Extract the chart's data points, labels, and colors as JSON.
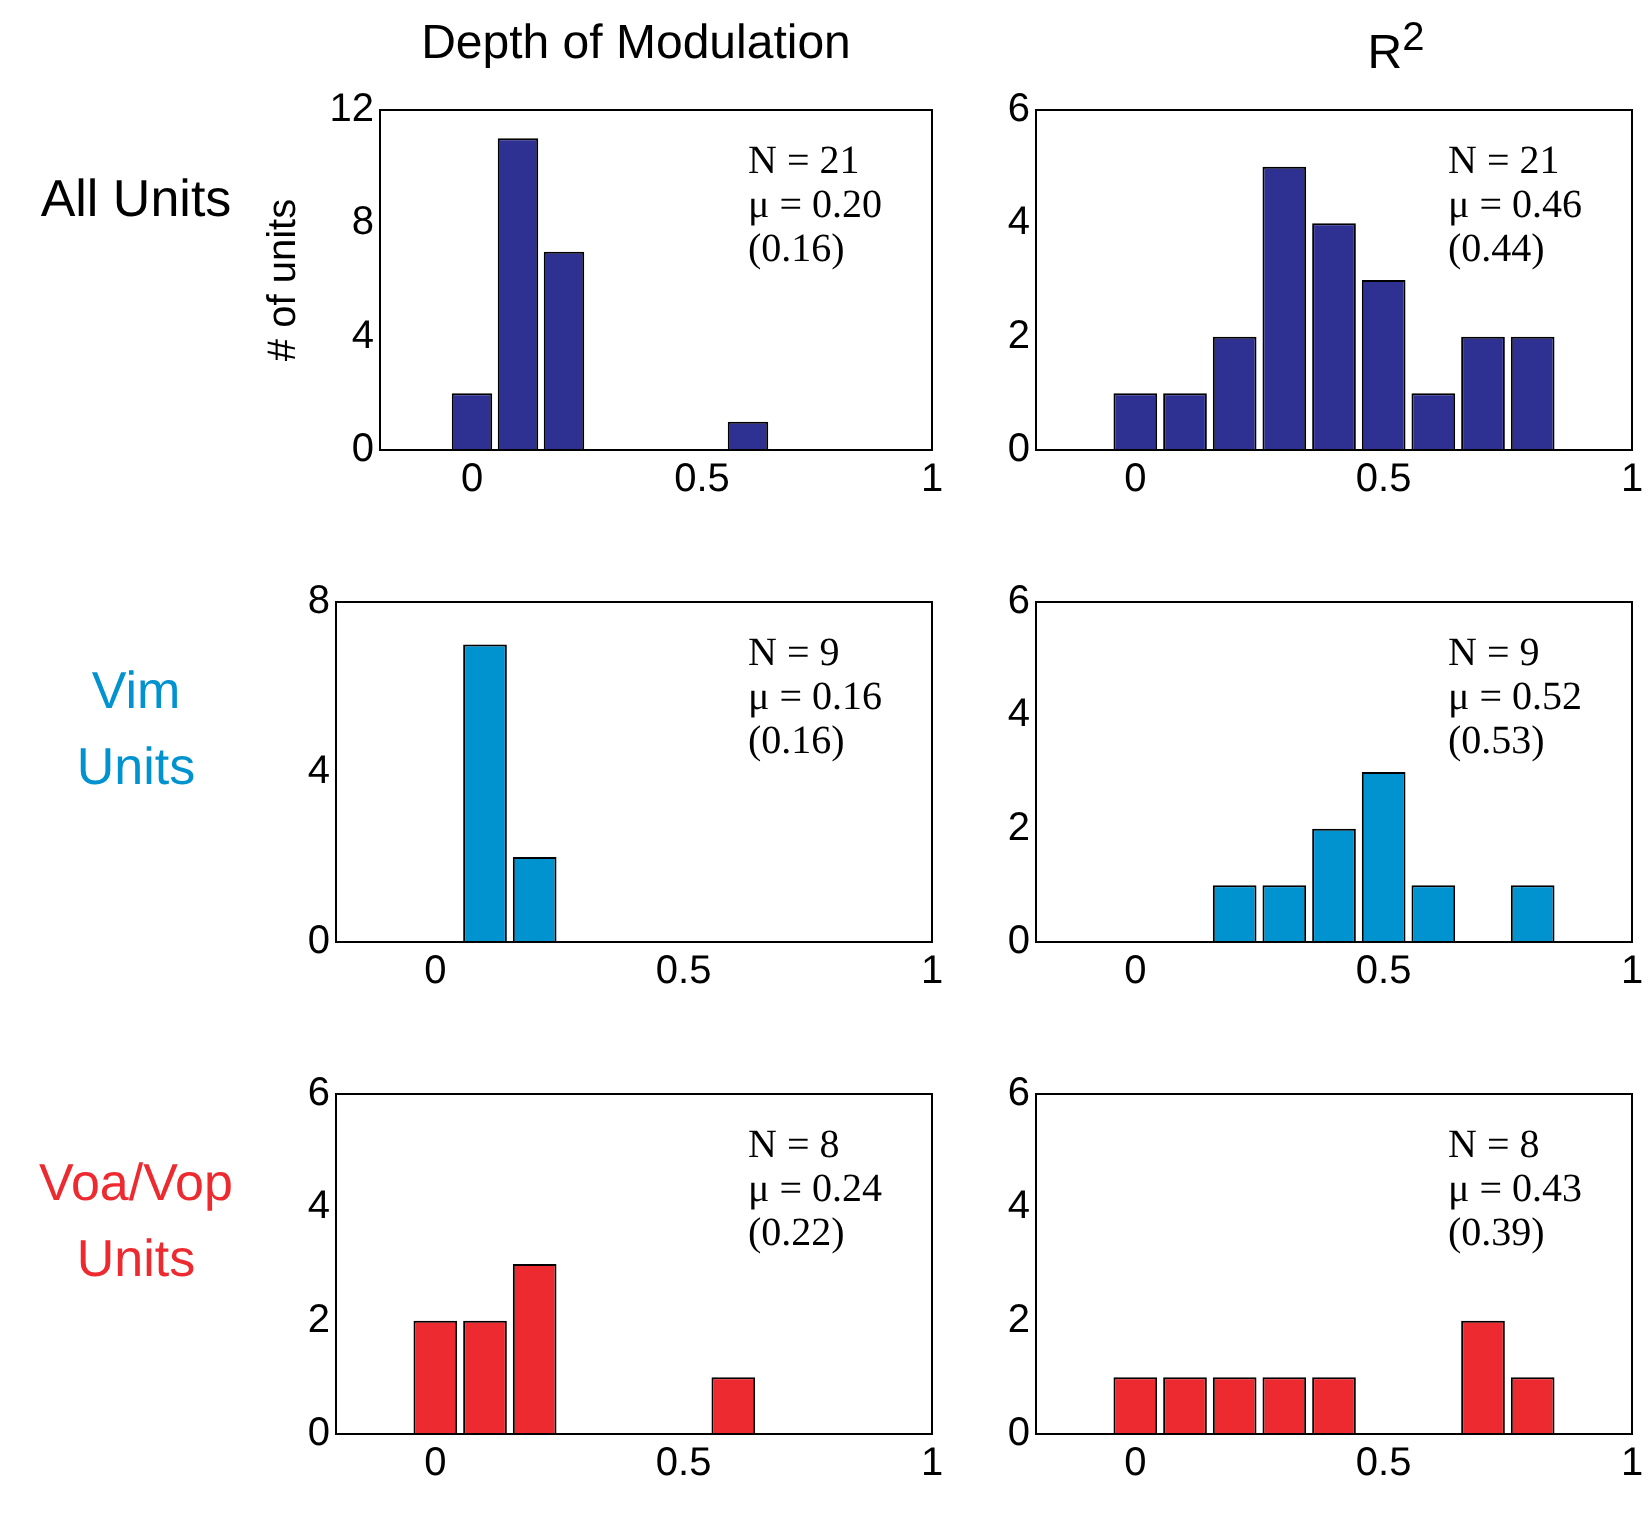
{
  "chart_data": [
    {
      "type": "histogram",
      "title": "Depth of Modulation",
      "ylabel": "# of units",
      "annotations": [
        "All Units",
        "N = 21\nμ = 0.20\n(0.16)"
      ],
      "bins": [
        -0.05,
        0.05,
        0.15,
        0.25,
        0.35,
        0.45,
        0.55,
        0.65,
        0.75,
        0.85
      ],
      "values": [
        2,
        11,
        7,
        0,
        0,
        0,
        1,
        0,
        0
      ],
      "color": "#2e3192",
      "xlim": [
        -0.2,
        1
      ],
      "xticks": [
        0,
        0.5,
        1
      ],
      "ylim": [
        0,
        12
      ],
      "yticks": [
        0,
        4,
        8,
        12
      ]
    },
    {
      "type": "histogram",
      "title": "R$^{2}$",
      "annotations": [
        "N = 21\nμ = 0.46\n(0.44)"
      ],
      "bins": [
        -0.05,
        0.05,
        0.15,
        0.25,
        0.35,
        0.45,
        0.55,
        0.65,
        0.75,
        0.85
      ],
      "values": [
        1,
        1,
        2,
        5,
        4,
        3,
        1,
        2,
        2
      ],
      "color": "#2e3192",
      "xlim": [
        -0.2,
        1
      ],
      "xticks": [
        0,
        0.5,
        1
      ],
      "ylim": [
        0,
        6
      ],
      "yticks": [
        0,
        2,
        4,
        6
      ]
    },
    {
      "type": "histogram",
      "annotations": [
        "Vim Units",
        "N = 9\nμ = 0.16\n(0.16)"
      ],
      "bins": [
        -0.05,
        0.05,
        0.15,
        0.25,
        0.35,
        0.45,
        0.55,
        0.65,
        0.75,
        0.85
      ],
      "values": [
        0,
        7,
        2,
        0,
        0,
        0,
        0,
        0,
        0
      ],
      "color": "#0093d0",
      "xlim": [
        -0.2,
        1
      ],
      "xticks": [
        0,
        0.5,
        1
      ],
      "ylim": [
        0,
        8
      ],
      "yticks": [
        0,
        4,
        8
      ]
    },
    {
      "type": "histogram",
      "annotations": [
        "N = 9\nμ = 0.52\n(0.53)"
      ],
      "bins": [
        -0.05,
        0.05,
        0.15,
        0.25,
        0.35,
        0.45,
        0.55,
        0.65,
        0.75,
        0.85
      ],
      "values": [
        0,
        0,
        1,
        1,
        2,
        3,
        1,
        0,
        1
      ],
      "color": "#0093d0",
      "xlim": [
        -0.2,
        1
      ],
      "xticks": [
        0,
        0.5,
        1
      ],
      "ylim": [
        0,
        6
      ],
      "yticks": [
        0,
        2,
        4,
        6
      ]
    },
    {
      "type": "histogram",
      "annotations": [
        "Voa/Vop Units",
        "N = 8\nμ = 0.24\n(0.22)"
      ],
      "bins": [
        -0.05,
        0.05,
        0.15,
        0.25,
        0.35,
        0.45,
        0.55,
        0.65,
        0.75,
        0.85
      ],
      "values": [
        2,
        2,
        3,
        0,
        0,
        0,
        1,
        0,
        0
      ],
      "color": "#ed2a2f",
      "xlim": [
        -0.2,
        1
      ],
      "xticks": [
        0,
        0.5,
        1
      ],
      "ylim": [
        0,
        6
      ],
      "yticks": [
        0,
        2,
        4,
        6
      ]
    },
    {
      "type": "histogram",
      "annotations": [
        "N = 8\nμ = 0.43\n(0.39)"
      ],
      "bins": [
        -0.05,
        0.05,
        0.15,
        0.25,
        0.35,
        0.45,
        0.55,
        0.65,
        0.75,
        0.85
      ],
      "values": [
        1,
        1,
        1,
        1,
        1,
        0,
        0,
        2,
        1
      ],
      "color": "#ed2a2f",
      "xlim": [
        -0.2,
        1
      ],
      "xticks": [
        0,
        0.5,
        1
      ],
      "ylim": [
        0,
        6
      ],
      "yticks": [
        0,
        2,
        4,
        6
      ]
    }
  ]
}
